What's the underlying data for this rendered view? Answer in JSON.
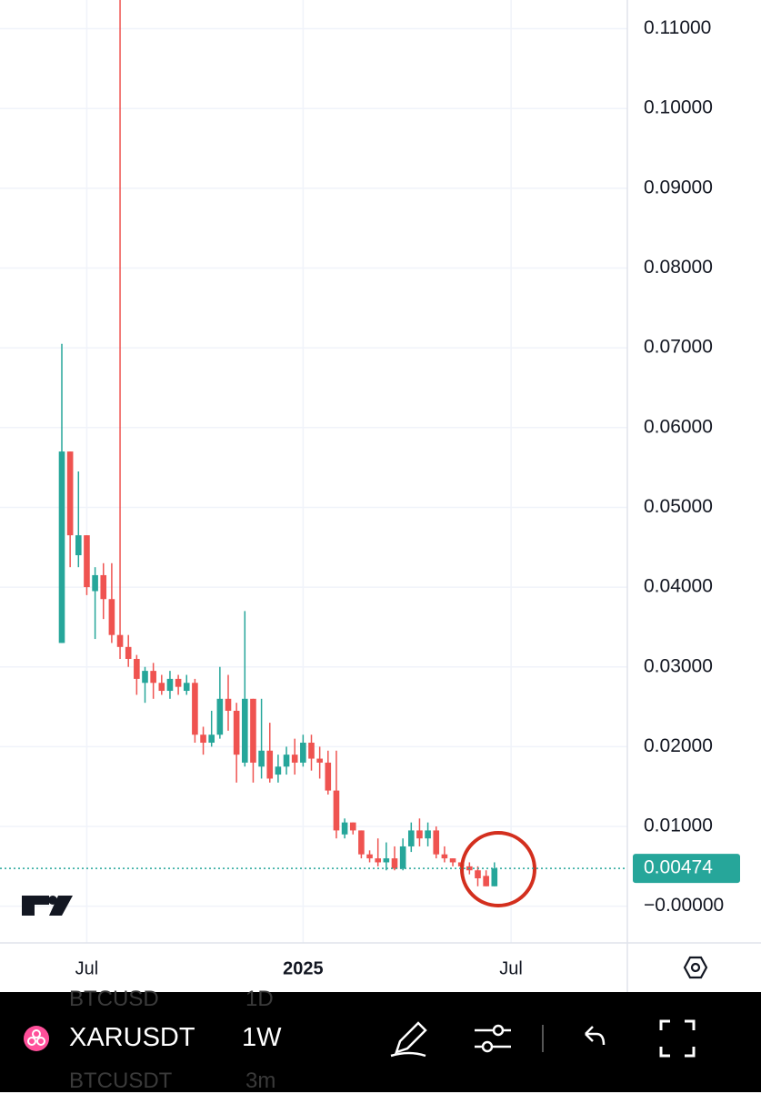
{
  "chart_data": {
    "type": "candlestick",
    "categories": [
      null,
      null,
      null,
      "Jul",
      null,
      null,
      null,
      null,
      null,
      null,
      null,
      null,
      null,
      null,
      null,
      null,
      null,
      null,
      null,
      null,
      null,
      null,
      null,
      null,
      null,
      null,
      null,
      null,
      null,
      "2025",
      null,
      null,
      null,
      null,
      null,
      null,
      null,
      null,
      null,
      null,
      null,
      null,
      null,
      null,
      null,
      null,
      null,
      null,
      null,
      null,
      null,
      null,
      null,
      null,
      "Jul"
    ],
    "open": [
      0.033,
      0.057,
      0.044,
      0.0465,
      0.0395,
      0.0415,
      0.0385,
      0.034,
      0.0325,
      0.031,
      0.028,
      0.0295,
      0.028,
      0.027,
      0.0285,
      0.027,
      0.028,
      0.0215,
      0.0205,
      0.0215,
      0.026,
      0.0245,
      0.018,
      0.026,
      0.0175,
      0.0195,
      0.0165,
      0.0175,
      0.019,
      0.018,
      0.0205,
      0.0185,
      0.018,
      0.0145,
      0.009,
      0.0105,
      0.0095,
      0.0065,
      0.006,
      0.0055,
      0.006,
      0.0047,
      0.0075,
      0.0095,
      0.0085,
      0.0095,
      0.0065,
      0.006,
      0.0055,
      0.005,
      0.0045,
      0.0038,
      0.0025,
      null,
      null
    ],
    "high": [
      0.0705,
      0.057,
      0.0545,
      0.0465,
      0.0425,
      0.043,
      0.043,
      0.1136,
      0.034,
      0.0315,
      0.03,
      0.0305,
      0.029,
      0.0295,
      0.029,
      0.029,
      0.0285,
      0.0225,
      0.0245,
      0.03,
      0.029,
      0.0255,
      0.037,
      0.026,
      0.026,
      0.023,
      0.019,
      0.02,
      0.021,
      0.0215,
      0.0215,
      0.02,
      0.0195,
      0.0195,
      0.011,
      0.0105,
      0.0095,
      0.007,
      0.0085,
      0.008,
      0.0075,
      0.0085,
      0.0105,
      0.011,
      0.0105,
      0.01,
      0.0075,
      0.006,
      0.0055,
      0.0055,
      0.005,
      0.0045,
      0.0055,
      null,
      null
    ],
    "low": [
      0.033,
      0.0425,
      0.0425,
      0.039,
      0.0335,
      0.036,
      0.033,
      0.031,
      0.03,
      0.0265,
      0.0255,
      0.026,
      0.0265,
      0.026,
      0.0265,
      0.0265,
      0.0205,
      0.019,
      0.02,
      0.021,
      0.022,
      0.0155,
      0.0175,
      0.0155,
      0.016,
      0.0155,
      0.0155,
      0.0165,
      0.0165,
      0.0175,
      0.017,
      0.016,
      0.014,
      0.0085,
      0.0085,
      0.009,
      0.006,
      0.0055,
      0.005,
      0.0045,
      0.0045,
      0.0045,
      0.0068,
      0.0075,
      0.0075,
      0.006,
      0.0055,
      0.005,
      0.0045,
      0.004,
      0.0025,
      0.0025,
      0.0025,
      null,
      null
    ],
    "close": [
      0.057,
      0.0465,
      0.0465,
      0.04,
      0.0415,
      0.0385,
      0.034,
      0.0325,
      0.031,
      0.0285,
      0.0295,
      0.028,
      0.027,
      0.0285,
      0.0275,
      0.028,
      0.0215,
      0.0205,
      0.0215,
      0.026,
      0.0245,
      0.019,
      0.026,
      0.018,
      0.0195,
      0.016,
      0.0175,
      0.019,
      0.018,
      0.0205,
      0.0185,
      0.018,
      0.0145,
      0.0095,
      0.0105,
      0.0095,
      0.0065,
      0.006,
      0.0055,
      0.006,
      0.0047,
      0.0075,
      0.0095,
      0.0085,
      0.0095,
      0.0065,
      0.006,
      0.0055,
      0.005,
      0.0045,
      0.0035,
      0.0025,
      0.00474,
      null,
      null
    ],
    "up_color": "#26a69a",
    "down_color": "#ef5350",
    "ylim": [
      -0.0046,
      0.1136
    ],
    "yticks": [
      {
        "value": 0.11,
        "label": "0.11000"
      },
      {
        "value": 0.1,
        "label": "0.10000"
      },
      {
        "value": 0.09,
        "label": "0.09000"
      },
      {
        "value": 0.08,
        "label": "0.08000"
      },
      {
        "value": 0.07,
        "label": "0.07000"
      },
      {
        "value": 0.06,
        "label": "0.06000"
      },
      {
        "value": 0.05,
        "label": "0.05000"
      },
      {
        "value": 0.04,
        "label": "0.04000"
      },
      {
        "value": 0.03,
        "label": "0.03000"
      },
      {
        "value": 0.02,
        "label": "0.02000"
      },
      {
        "value": 0.01,
        "label": "0.01000"
      },
      {
        "value": 0,
        "label": "−0.00000"
      }
    ],
    "last_price": 0.00474,
    "grid": true
  },
  "toolbar": {
    "symbol": "XARUSDT",
    "interval": "1W",
    "ghost_symbols": [
      "BTCUSD",
      "BTCUSDT"
    ],
    "ghost_intervals": [
      "1D",
      "3m"
    ]
  }
}
